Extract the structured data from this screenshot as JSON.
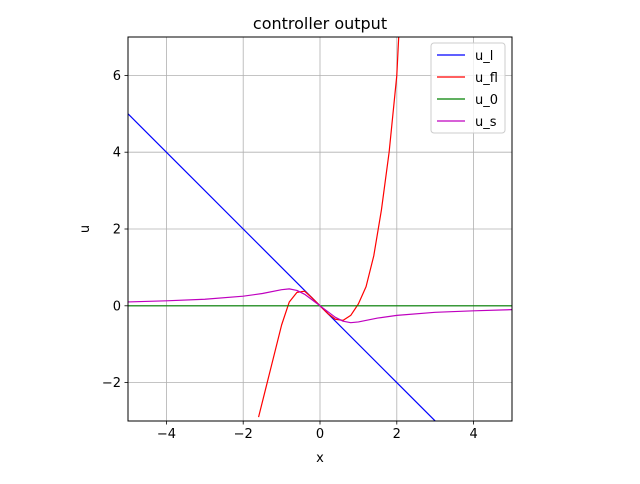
{
  "chart_data": {
    "type": "line",
    "title": "controller output",
    "xlabel": "x",
    "ylabel": "u",
    "xlim": [
      -5,
      5
    ],
    "ylim": [
      -3,
      7
    ],
    "xticks": [
      -4,
      -2,
      0,
      2,
      4
    ],
    "yticks": [
      -2,
      0,
      2,
      4,
      6
    ],
    "xtick_labels": [
      "−4",
      "−2",
      "0",
      "2",
      "4"
    ],
    "ytick_labels": [
      "−2",
      "0",
      "2",
      "4",
      "6"
    ],
    "grid": true,
    "legend_position": "top-right",
    "series": [
      {
        "name": "u_l",
        "color": "#0000ff",
        "x": [
          -5,
          5
        ],
        "y": [
          5,
          -5
        ]
      },
      {
        "name": "u_fl",
        "color": "#ff0000",
        "x": [
          -1.6,
          -1.4,
          -1.2,
          -1.0,
          -0.8,
          -0.6,
          -0.4,
          -0.2,
          0.0,
          0.2,
          0.4,
          0.6,
          0.8,
          1.0,
          1.2,
          1.4,
          1.6,
          1.8,
          2.0,
          2.05
        ],
        "y": [
          -2.9,
          -2.1,
          -1.3,
          -0.5,
          0.1,
          0.35,
          0.38,
          0.2,
          0.0,
          -0.2,
          -0.35,
          -0.38,
          -0.25,
          0.05,
          0.5,
          1.3,
          2.5,
          4.0,
          6.0,
          7.0
        ]
      },
      {
        "name": "u_0",
        "color": "#008000",
        "x": [
          -5,
          5
        ],
        "y": [
          0,
          0
        ]
      },
      {
        "name": "u_s",
        "color": "#bf00bf",
        "x": [
          -5,
          -4,
          -3,
          -2,
          -1.5,
          -1.0,
          -0.8,
          -0.6,
          -0.4,
          -0.2,
          0.0,
          0.2,
          0.4,
          0.6,
          0.8,
          1.0,
          1.5,
          2.0,
          3.0,
          4.0,
          5.0
        ],
        "y": [
          0.1,
          0.13,
          0.17,
          0.25,
          0.32,
          0.42,
          0.44,
          0.4,
          0.3,
          0.15,
          0.0,
          -0.15,
          -0.3,
          -0.4,
          -0.44,
          -0.42,
          -0.32,
          -0.25,
          -0.17,
          -0.13,
          -0.1
        ]
      }
    ]
  }
}
